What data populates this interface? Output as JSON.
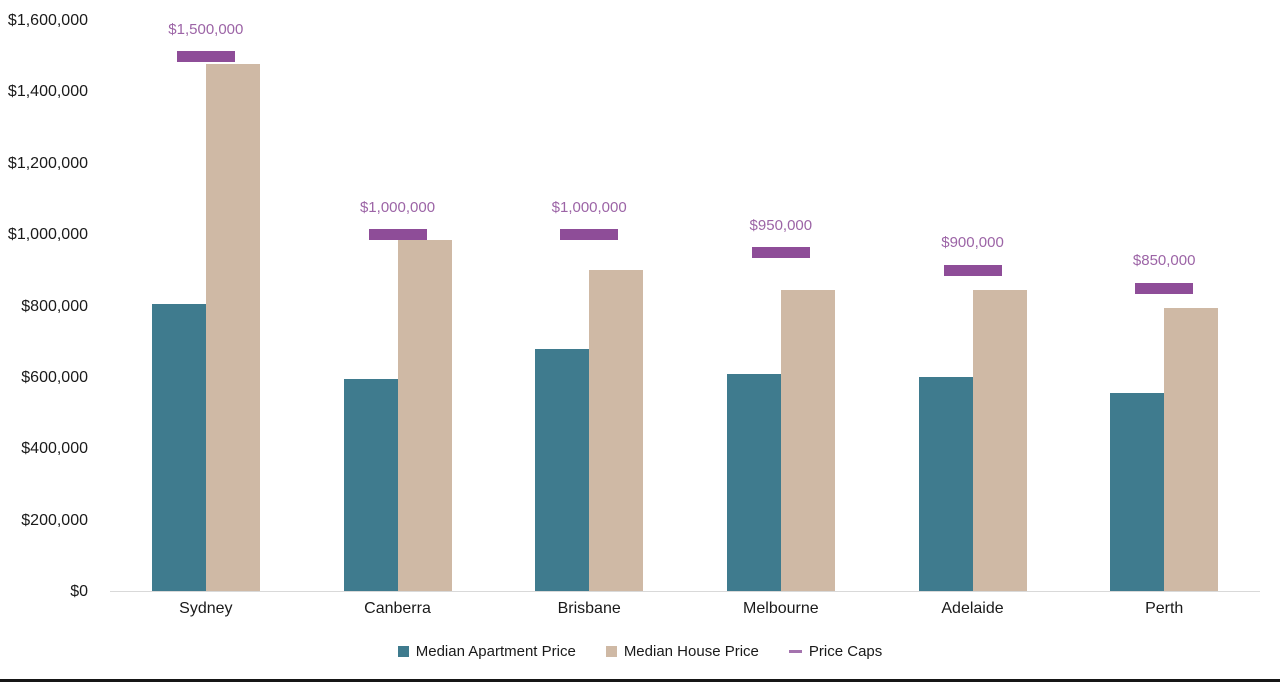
{
  "page": {
    "background": "#ffffff",
    "bottom_border_color": "#161616",
    "axis_line_color": "#d9d9d9",
    "text_color": "#1a1a1a"
  },
  "chart_data": {
    "type": "bar",
    "title": "",
    "xlabel": "",
    "ylabel": "",
    "grid": false,
    "legend_position": "bottom",
    "ylim": [
      0,
      1600000
    ],
    "y_tick_values": [
      0,
      200000,
      400000,
      600000,
      800000,
      1000000,
      1200000,
      1400000,
      1600000
    ],
    "y_tick_labels": [
      "$0",
      "$200,000",
      "$400,000",
      "$600,000",
      "$800,000",
      "$1,000,000",
      "$1,200,000",
      "$1,400,000",
      "$1,600,000"
    ],
    "categories": [
      "Sydney",
      "Canberra",
      "Brisbane",
      "Melbourne",
      "Adelaide",
      "Perth"
    ],
    "series": [
      {
        "name": "Median Apartment Price",
        "type": "bar",
        "color": "#3f7b8e",
        "values": [
          805000,
          595000,
          680000,
          610000,
          600000,
          555000
        ]
      },
      {
        "name": "Median House Price",
        "type": "bar",
        "color": "#cfb9a5",
        "values": [
          1480000,
          985000,
          900000,
          845000,
          845000,
          795000
        ]
      },
      {
        "name": "Price Caps",
        "type": "dash",
        "color": "#8e4d98",
        "legend_marker_color": "#a473ae",
        "label_color": "#9c64a6",
        "values": [
          1500000,
          1000000,
          1000000,
          950000,
          900000,
          850000
        ],
        "data_labels": [
          "$1,500,000",
          "$1,000,000",
          "$1,000,000",
          "$950,000",
          "$900,000",
          "$850,000"
        ]
      }
    ]
  }
}
